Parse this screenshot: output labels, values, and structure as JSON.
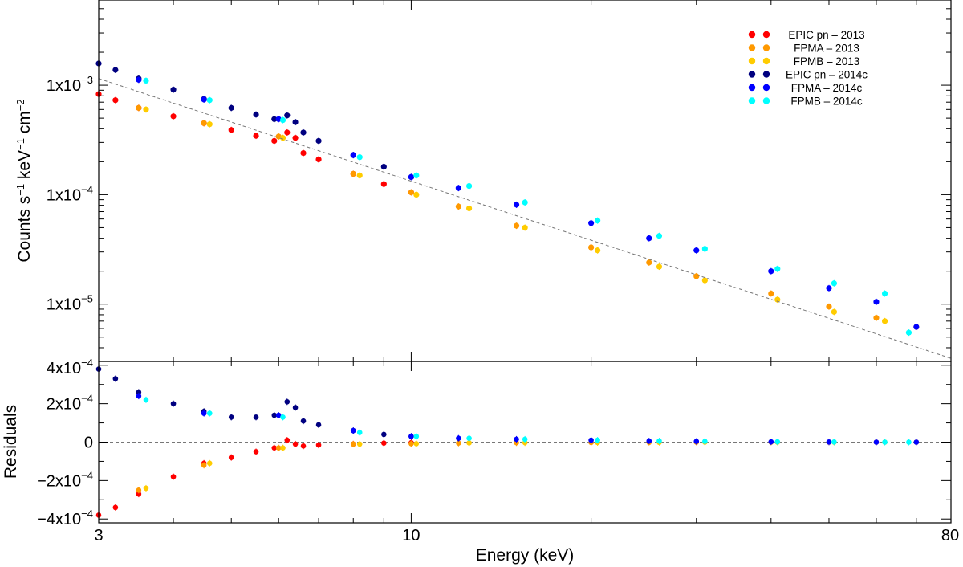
{
  "chart_data": {
    "type": "scatter",
    "xlabel": "Energy (keV)",
    "x_scale": "log",
    "xlim": [
      3,
      80
    ],
    "x_ticks": [
      {
        "value": 3,
        "label": "3"
      },
      {
        "value": 10,
        "label": "10"
      },
      {
        "value": 80,
        "label": "80"
      }
    ],
    "panels": {
      "spectrum": {
        "ylabel_parts": [
          "Counts s",
          "−1",
          " keV",
          "−1",
          " cm",
          "−2"
        ],
        "y_scale": "log",
        "ylim": [
          3e-06,
          0.006
        ],
        "y_ticks": [
          {
            "value": 0.001,
            "mantissa": "1x10",
            "exp": "−3"
          },
          {
            "value": 0.0001,
            "mantissa": "1x10",
            "exp": "−4"
          },
          {
            "value": 1e-05,
            "mantissa": "1x10",
            "exp": "−5"
          }
        ],
        "reference_model": {
          "style": "dashed",
          "color": "#777777",
          "x": [
            3,
            80
          ],
          "y": [
            0.00115,
            3.2e-06
          ]
        }
      },
      "residuals": {
        "ylabel": "Residuals",
        "y_scale": "linear",
        "ylim": [
          -0.00042,
          0.00042
        ],
        "y_ticks": [
          {
            "value": 0.0004,
            "mantissa": "4x10",
            "exp": "−4"
          },
          {
            "value": 0.0002,
            "mantissa": "2x10",
            "exp": "−4"
          },
          {
            "value": 0,
            "mantissa": "0",
            "exp": ""
          },
          {
            "value": -0.0002,
            "mantissa": "−2x10",
            "exp": "−4"
          },
          {
            "value": -0.0004,
            "mantissa": "−4x10",
            "exp": "−4"
          }
        ],
        "zero_line": {
          "style": "dashed",
          "color": "#777777"
        }
      }
    },
    "legend_position": "top-right",
    "series": [
      {
        "name": "EPIC pn – 2013",
        "color": "#ff0000",
        "x": [
          3.0,
          3.2,
          3.5,
          4.0,
          4.5,
          5.0,
          5.5,
          5.9,
          6.2,
          6.4,
          6.6,
          7.0,
          8.0,
          9.0,
          10.0
        ],
        "y": [
          0.00083,
          0.00073,
          0.00062,
          0.00052,
          0.00045,
          0.00039,
          0.000345,
          0.00031,
          0.00037,
          0.00033,
          0.00024,
          0.00021,
          0.000155,
          0.000125,
          0.000105
        ],
        "residuals": [
          -0.00038,
          -0.00034,
          -0.00027,
          -0.00018,
          -0.00011,
          -8e-05,
          -5e-05,
          -3e-05,
          1e-05,
          -1e-05,
          -2e-05,
          -1.5e-05,
          -1e-05,
          -5e-06,
          -3e-06
        ]
      },
      {
        "name": "FPMA – 2013",
        "color": "#ff9900",
        "x": [
          3.5,
          4.5,
          6.0,
          8.0,
          10.0,
          12.0,
          15.0,
          20.0,
          25.0,
          30.0,
          40.0,
          50.0,
          60.0,
          70.0
        ],
        "y": [
          0.00062,
          0.00045,
          0.00034,
          0.000155,
          0.000105,
          7.8e-05,
          5.2e-05,
          3.3e-05,
          2.4e-05,
          1.8e-05,
          1.25e-05,
          9.5e-06,
          7.5e-06,
          6.2e-06
        ],
        "residuals": [
          -0.00025,
          -0.00012,
          -3e-05,
          -1e-05,
          -8e-06,
          -5e-06,
          -3e-06,
          -2e-06,
          -1e-06,
          0,
          0,
          0,
          0,
          0
        ]
      },
      {
        "name": "FPMB – 2013",
        "color": "#ffcc00",
        "x": [
          3.6,
          4.6,
          6.1,
          8.2,
          10.2,
          12.5,
          15.5,
          20.5,
          26.0,
          31.0,
          41.0,
          51.0,
          62.0
        ],
        "y": [
          0.0006,
          0.00044,
          0.00033,
          0.00015,
          0.0001,
          7.5e-05,
          5e-05,
          3.1e-05,
          2.2e-05,
          1.65e-05,
          1.1e-05,
          8.5e-06,
          7e-06
        ],
        "residuals": [
          -0.00024,
          -0.00011,
          -3e-05,
          -1e-05,
          -8e-06,
          -4e-06,
          -3e-06,
          -2e-06,
          -1e-06,
          0,
          0,
          0,
          0
        ]
      },
      {
        "name": "EPIC pn – 2014c",
        "color": "#000080",
        "x": [
          3.0,
          3.2,
          3.5,
          4.0,
          4.5,
          5.0,
          5.5,
          5.9,
          6.2,
          6.4,
          6.6,
          7.0,
          8.0,
          9.0,
          10.0
        ],
        "y": [
          0.00158,
          0.00138,
          0.00115,
          0.00091,
          0.00075,
          0.00062,
          0.00054,
          0.00049,
          0.00053,
          0.00046,
          0.00037,
          0.00031,
          0.00023,
          0.00018,
          0.000145
        ],
        "residuals": [
          0.00038,
          0.00033,
          0.00026,
          0.0002,
          0.00016,
          0.00013,
          0.00013,
          0.00014,
          0.00021,
          0.00018,
          0.00011,
          9e-05,
          6e-05,
          4e-05,
          3e-05
        ]
      },
      {
        "name": "FPMA – 2014c",
        "color": "#0000ff",
        "x": [
          3.5,
          4.5,
          6.0,
          8.0,
          10.0,
          12.0,
          15.0,
          20.0,
          25.0,
          30.0,
          40.0,
          50.0,
          60.0,
          70.0
        ],
        "y": [
          0.00112,
          0.00074,
          0.00049,
          0.00023,
          0.000145,
          0.000115,
          8.1e-05,
          5.5e-05,
          4e-05,
          3.1e-05,
          2e-05,
          1.4e-05,
          1.05e-05,
          6.2e-06
        ],
        "residuals": [
          0.00024,
          0.00015,
          0.00014,
          6e-05,
          3e-05,
          2e-05,
          1.5e-05,
          1e-05,
          6e-06,
          4e-06,
          2e-06,
          1e-06,
          0,
          0
        ]
      },
      {
        "name": "FPMB – 2014c",
        "color": "#00ffff",
        "x": [
          3.6,
          4.6,
          6.1,
          8.2,
          10.2,
          12.5,
          15.5,
          20.5,
          26.0,
          31.0,
          41.0,
          51.0,
          62.0,
          68.0
        ],
        "y": [
          0.0011,
          0.00073,
          0.00048,
          0.00022,
          0.00015,
          0.00012,
          8.5e-05,
          5.8e-05,
          4.2e-05,
          3.2e-05,
          2.1e-05,
          1.55e-05,
          1.25e-05,
          5.5e-06
        ],
        "residuals": [
          0.00022,
          0.00015,
          0.00013,
          5e-05,
          3e-05,
          2e-05,
          1.5e-05,
          1e-05,
          6e-06,
          4e-06,
          2e-06,
          1e-06,
          0,
          0
        ]
      }
    ]
  }
}
